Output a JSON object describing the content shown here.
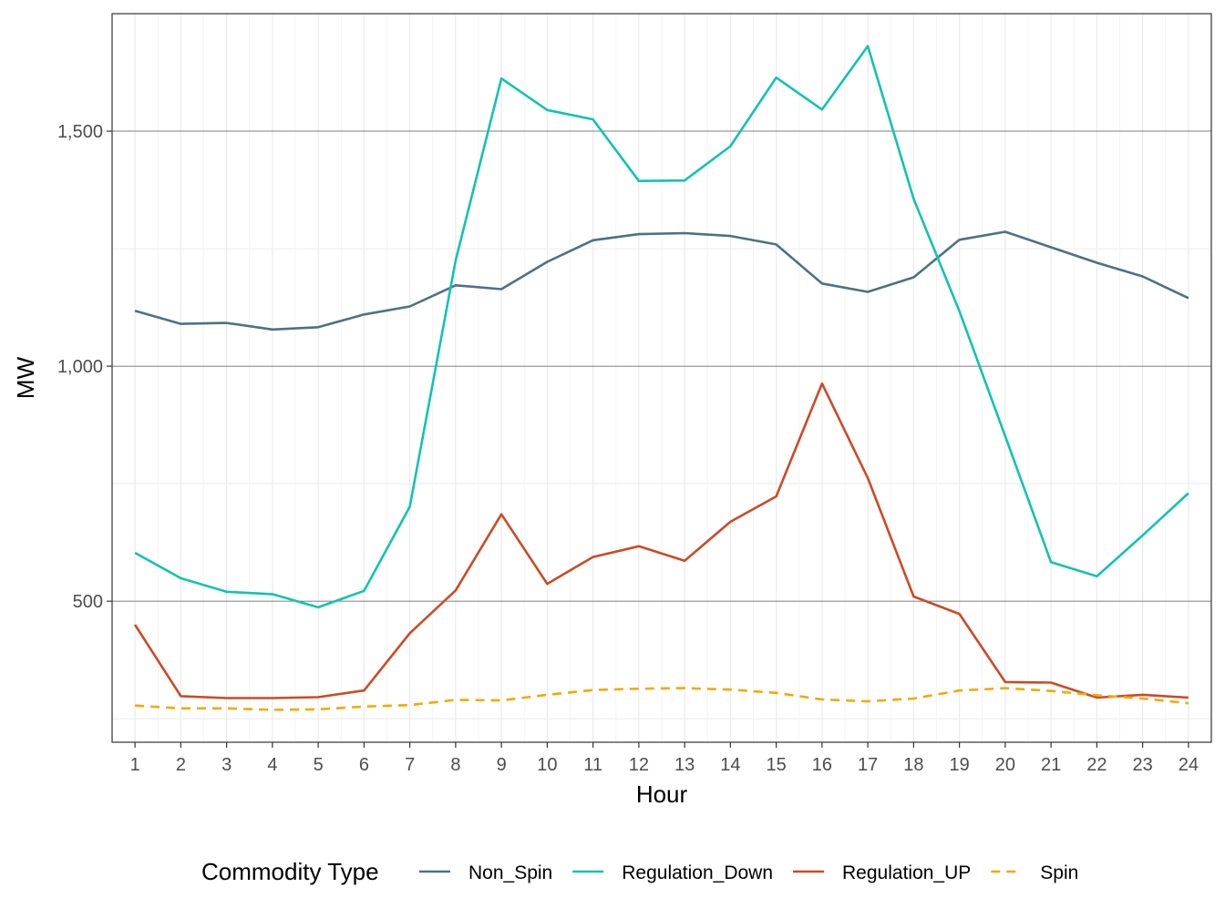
{
  "chart_data": {
    "type": "line",
    "xlabel": "Hour",
    "ylabel": "MW",
    "x": [
      1,
      2,
      3,
      4,
      5,
      6,
      7,
      8,
      9,
      10,
      11,
      12,
      13,
      14,
      15,
      16,
      17,
      18,
      19,
      20,
      21,
      22,
      23,
      24
    ],
    "x_tick_labels": [
      "1",
      "2",
      "3",
      "4",
      "5",
      "6",
      "7",
      "8",
      "9",
      "10",
      "11",
      "12",
      "13",
      "14",
      "15",
      "16",
      "17",
      "18",
      "19",
      "20",
      "21",
      "22",
      "23",
      "24"
    ],
    "y_ticks": [
      500,
      1000,
      1500
    ],
    "y_tick_labels": [
      "500",
      "1,000",
      "1,500"
    ],
    "xlim": [
      0.5,
      24.5
    ],
    "ylim": [
      200,
      1750
    ],
    "grid": true,
    "legend": {
      "title": "Commodity Type",
      "position": "bottom"
    },
    "series": [
      {
        "name": "Non_Spin",
        "color": "#4b7285",
        "dash": "solid",
        "values": [
          1118,
          1090,
          1092,
          1078,
          1083,
          1110,
          1127,
          1172,
          1164,
          1222,
          1268,
          1281,
          1283,
          1277,
          1259,
          1176,
          1158,
          1189,
          1269,
          1286,
          1253,
          1220,
          1191,
          1145
        ]
      },
      {
        "name": "Regulation_Down",
        "color": "#12c3b1",
        "dash": "solid",
        "values": [
          603,
          549,
          520,
          515,
          487,
          522,
          701,
          1225,
          1612,
          1545,
          1525,
          1394,
          1395,
          1468,
          1614,
          1546,
          1681,
          1356,
          1117,
          851,
          583,
          553,
          640,
          730
        ]
      },
      {
        "name": "Regulation_UP",
        "color": "#cd4a24",
        "dash": "solid",
        "values": [
          450,
          298,
          294,
          294,
          296,
          310,
          432,
          523,
          685,
          537,
          594,
          617,
          586,
          669,
          723,
          963,
          762,
          510,
          473,
          328,
          327,
          295,
          301,
          295
        ]
      },
      {
        "name": "Spin",
        "color": "#f5a800",
        "dash": "dashed",
        "values": [
          278,
          272,
          272,
          269,
          270,
          276,
          279,
          290,
          289,
          301,
          311,
          314,
          315,
          312,
          305,
          291,
          287,
          293,
          310,
          315,
          309,
          300,
          293,
          283
        ]
      }
    ]
  }
}
